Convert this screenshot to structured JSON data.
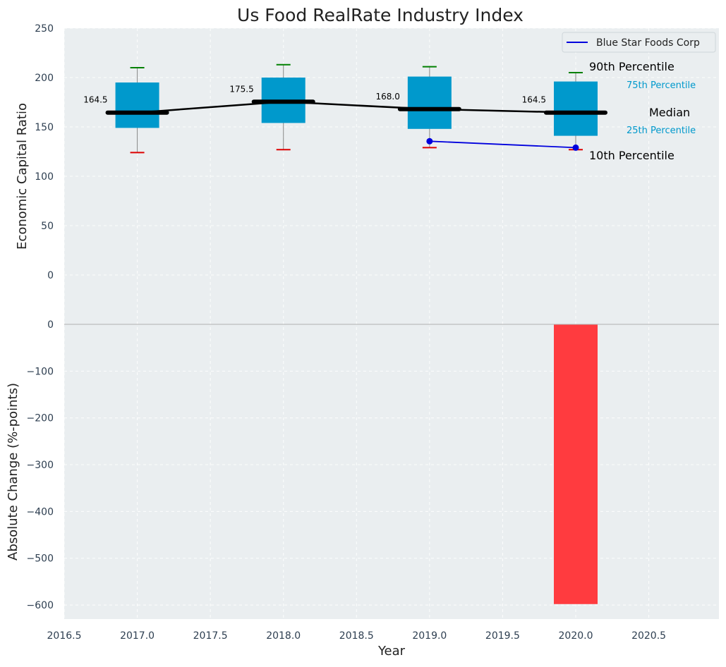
{
  "chart_data": [
    {
      "type": "box",
      "title": "Us Food RealRate Industry Index",
      "xlabel": "",
      "ylabel": "Economic Capital Ratio",
      "xlim": [
        2016.5,
        2020.98
      ],
      "ylim": [
        -50,
        250
      ],
      "x_ticks": [
        2016.5,
        2017.0,
        2017.5,
        2018.0,
        2018.5,
        2019.0,
        2019.5,
        2020.0,
        2020.5
      ],
      "y_ticks": [
        0,
        50,
        100,
        150,
        200,
        250
      ],
      "grid": true,
      "boxes": [
        {
          "year": 2017,
          "p10": 124,
          "p25": 149,
          "median": 164.5,
          "p75": 195,
          "p90": 210,
          "median_label": "164.5"
        },
        {
          "year": 2018,
          "p10": 127,
          "p25": 154,
          "median": 175.5,
          "p75": 200,
          "p90": 213,
          "median_label": "175.5"
        },
        {
          "year": 2019,
          "p10": 129,
          "p25": 148,
          "median": 168.0,
          "p75": 201,
          "p90": 211,
          "median_label": "168.0"
        },
        {
          "year": 2020,
          "p10": 127,
          "p25": 141,
          "median": 164.5,
          "p75": 196,
          "p90": 205,
          "median_label": "164.5"
        }
      ],
      "series": [
        {
          "name": "Blue Star Foods Corp",
          "x": [
            2019,
            2020
          ],
          "values": [
            135.5,
            129
          ]
        }
      ],
      "legend": {
        "placement": "top-right",
        "entries": [
          "Blue Star Foods Corp"
        ]
      },
      "annotations": {
        "p90": "90th Percentile",
        "p75": "75th Percentile",
        "median": "Median",
        "p25": "25th Percentile",
        "p10": "10th Percentile"
      },
      "colors": {
        "box": "#0099cc",
        "median_line": "#000000",
        "company": "#0000dd",
        "p90_cap": "#008000",
        "p10_cap": "#dd0000",
        "bg": "#eaeef0"
      }
    },
    {
      "type": "bar",
      "xlabel": "Year",
      "ylabel": "Absolute Change (%-points)",
      "xlim": [
        2016.5,
        2020.98
      ],
      "ylim": [
        -630,
        0
      ],
      "y_ticks": [
        0,
        -100,
        -200,
        -300,
        -400,
        -500,
        -600
      ],
      "x_ticks": [
        2016.5,
        2017.0,
        2017.5,
        2018.0,
        2018.5,
        2019.0,
        2019.5,
        2020.0,
        2020.5
      ],
      "grid": true,
      "bars": [
        {
          "x": 2020,
          "value": -598
        }
      ],
      "colors": {
        "bar": "#ff3b3f"
      }
    }
  ]
}
